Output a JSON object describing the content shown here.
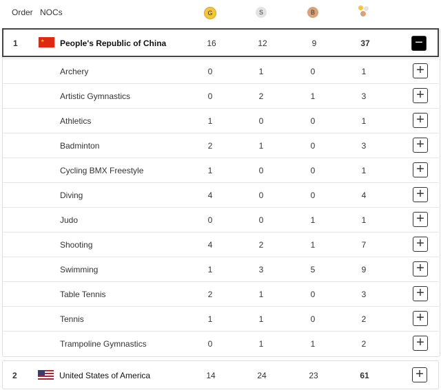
{
  "header": {
    "order": "Order",
    "nocs": "NOCs",
    "gold": "G",
    "silver": "S",
    "bronze": "B"
  },
  "colors": {
    "gold": "#f5c542",
    "silver": "#e0e0e0",
    "bronze": "#d9a27a"
  },
  "countries": [
    {
      "order": "1",
      "name": "People's Republic of China",
      "gold": "16",
      "silver": "12",
      "bronze": "9",
      "total": "37",
      "expanded": true,
      "sports": [
        {
          "name": "Archery",
          "gold": "0",
          "silver": "1",
          "bronze": "0",
          "total": "1"
        },
        {
          "name": "Artistic Gymnastics",
          "gold": "0",
          "silver": "2",
          "bronze": "1",
          "total": "3"
        },
        {
          "name": "Athletics",
          "gold": "1",
          "silver": "0",
          "bronze": "0",
          "total": "1"
        },
        {
          "name": "Badminton",
          "gold": "2",
          "silver": "1",
          "bronze": "0",
          "total": "3"
        },
        {
          "name": "Cycling BMX Freestyle",
          "gold": "1",
          "silver": "0",
          "bronze": "0",
          "total": "1"
        },
        {
          "name": "Diving",
          "gold": "4",
          "silver": "0",
          "bronze": "0",
          "total": "4"
        },
        {
          "name": "Judo",
          "gold": "0",
          "silver": "0",
          "bronze": "1",
          "total": "1"
        },
        {
          "name": "Shooting",
          "gold": "4",
          "silver": "2",
          "bronze": "1",
          "total": "7"
        },
        {
          "name": "Swimming",
          "gold": "1",
          "silver": "3",
          "bronze": "5",
          "total": "9"
        },
        {
          "name": "Table Tennis",
          "gold": "2",
          "silver": "1",
          "bronze": "0",
          "total": "3"
        },
        {
          "name": "Tennis",
          "gold": "1",
          "silver": "1",
          "bronze": "0",
          "total": "2"
        },
        {
          "name": "Trampoline Gymnastics",
          "gold": "0",
          "silver": "1",
          "bronze": "1",
          "total": "2"
        }
      ]
    },
    {
      "order": "2",
      "name": "United States of America",
      "gold": "14",
      "silver": "24",
      "bronze": "23",
      "total": "61",
      "expanded": false
    }
  ]
}
